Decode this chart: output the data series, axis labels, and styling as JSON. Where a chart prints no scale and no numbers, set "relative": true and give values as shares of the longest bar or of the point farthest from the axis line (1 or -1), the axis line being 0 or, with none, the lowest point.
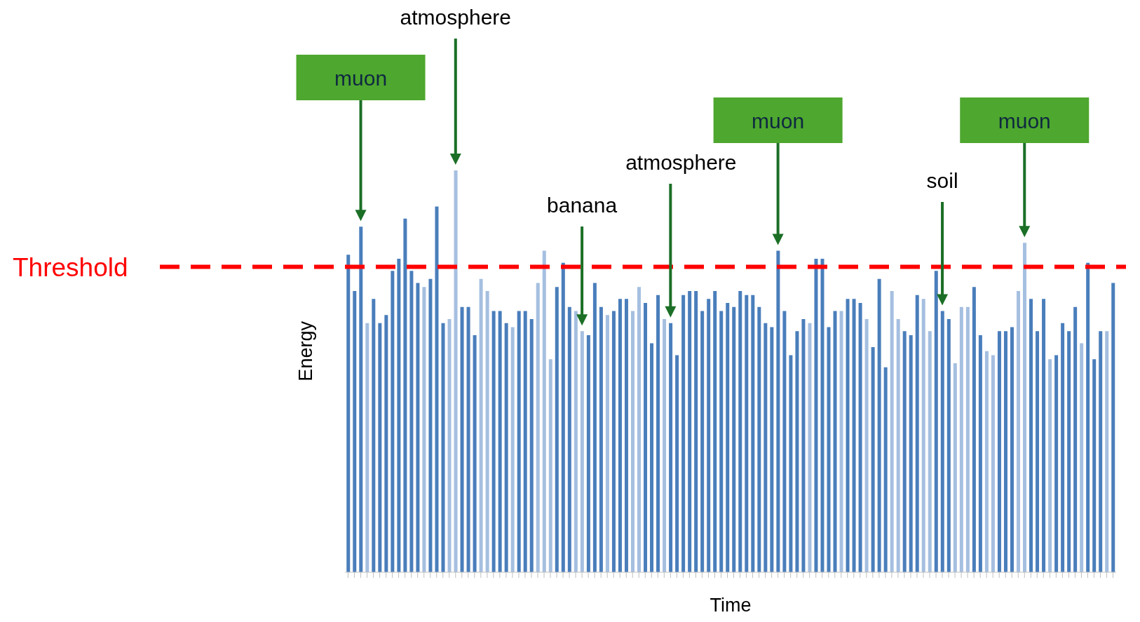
{
  "chart_data": {
    "type": "bar",
    "relative": true,
    "xlabel": "Time",
    "ylabel": "Energy",
    "grid": false,
    "legend": false,
    "categories": [
      null,
      null,
      null,
      null,
      null,
      null,
      null,
      null,
      null,
      null,
      null,
      null,
      null,
      null,
      null,
      null,
      null,
      null,
      null,
      null,
      null,
      null,
      null,
      null,
      null,
      null,
      null,
      null,
      null,
      null,
      null,
      null,
      null,
      null,
      null,
      null,
      null,
      null,
      null,
      null,
      null,
      null,
      null,
      null,
      null,
      null,
      null,
      null,
      null,
      null,
      null,
      null,
      null,
      null,
      null,
      null,
      null,
      null,
      null,
      null,
      null,
      null,
      null,
      null,
      null,
      null,
      null,
      null,
      null,
      null,
      null,
      null,
      null,
      null,
      null,
      null,
      null,
      null,
      null,
      null,
      null,
      null,
      null,
      null,
      null,
      null,
      null,
      null,
      null,
      null,
      null,
      null,
      null,
      null,
      null,
      null,
      null,
      null,
      null,
      null,
      null,
      null,
      null,
      null,
      null,
      null,
      null,
      null,
      null,
      null,
      null,
      null,
      null,
      null,
      null,
      null,
      null,
      null,
      null,
      null,
      null,
      null
    ],
    "values": [
      0.79,
      0.7,
      0.86,
      0.62,
      0.68,
      0.62,
      0.64,
      0.75,
      0.78,
      0.88,
      0.75,
      0.72,
      0.71,
      0.73,
      0.91,
      0.62,
      0.63,
      1,
      0.66,
      0.66,
      0.59,
      0.73,
      0.7,
      0.65,
      0.65,
      0.62,
      0.61,
      0.65,
      0.65,
      0.63,
      0.72,
      0.8,
      0.53,
      0.71,
      0.77,
      0.66,
      0.65,
      0.6,
      0.59,
      0.72,
      0.66,
      0.64,
      0.65,
      0.68,
      0.68,
      0.65,
      0.71,
      0.67,
      0.57,
      0.69,
      0.63,
      0.62,
      0.54,
      0.69,
      0.7,
      0.7,
      0.65,
      0.68,
      0.7,
      0.65,
      0.67,
      0.66,
      0.7,
      0.69,
      0.69,
      0.66,
      0.62,
      0.61,
      0.8,
      0.65,
      0.54,
      0.6,
      0.63,
      0.62,
      0.78,
      0.78,
      0.61,
      0.65,
      0.65,
      0.68,
      0.68,
      0.67,
      0.63,
      0.56,
      0.73,
      0.51,
      0.7,
      0.63,
      0.6,
      0.59,
      0.69,
      0.68,
      0.6,
      0.75,
      0.65,
      0.63,
      0.52,
      0.66,
      0.66,
      0.71,
      0.59,
      0.55,
      0.54,
      0.6,
      0.6,
      0.61,
      0.7,
      0.82,
      0.68,
      0.6,
      0.68,
      0.53,
      0.54,
      0.62,
      0.6,
      0.66,
      0.57,
      0.77,
      0.53,
      0.6,
      0.6,
      0.72
    ],
    "colors": [
      "#4a7ebb",
      "#4a7ebb",
      "#4a7ebb",
      "#a5bfe0",
      "#4a7ebb",
      "#4a7ebb",
      "#4a7ebb",
      "#4a7ebb",
      "#4a7ebb",
      "#4a7ebb",
      "#4a7ebb",
      "#4a7ebb",
      "#a5bfe0",
      "#4a7ebb",
      "#4a7ebb",
      "#4a7ebb",
      "#a5bfe0",
      "#a5bfe0",
      "#4a7ebb",
      "#4a7ebb",
      "#4a7ebb",
      "#a5bfe0",
      "#a5bfe0",
      "#4a7ebb",
      "#4a7ebb",
      "#4a7ebb",
      "#a5bfe0",
      "#4a7ebb",
      "#4a7ebb",
      "#4a7ebb",
      "#a5bfe0",
      "#a5bfe0",
      "#a5bfe0",
      "#4a7ebb",
      "#4a7ebb",
      "#4a7ebb",
      "#a5bfe0",
      "#a5bfe0",
      "#4a7ebb",
      "#4a7ebb",
      "#4a7ebb",
      "#a5bfe0",
      "#4a7ebb",
      "#4a7ebb",
      "#4a7ebb",
      "#a5bfe0",
      "#a5bfe0",
      "#4a7ebb",
      "#4a7ebb",
      "#4a7ebb",
      "#a5bfe0",
      "#4a7ebb",
      "#4a7ebb",
      "#4a7ebb",
      "#4a7ebb",
      "#4a7ebb",
      "#4a7ebb",
      "#4a7ebb",
      "#4a7ebb",
      "#4a7ebb",
      "#4a7ebb",
      "#4a7ebb",
      "#4a7ebb",
      "#4a7ebb",
      "#4a7ebb",
      "#4a7ebb",
      "#4a7ebb",
      "#4a7ebb",
      "#4a7ebb",
      "#4a7ebb",
      "#4a7ebb",
      "#4a7ebb",
      "#4a7ebb",
      "#a5bfe0",
      "#4a7ebb",
      "#4a7ebb",
      "#4a7ebb",
      "#4a7ebb",
      "#a5bfe0",
      "#4a7ebb",
      "#4a7ebb",
      "#4a7ebb",
      "#a5bfe0",
      "#4a7ebb",
      "#4a7ebb",
      "#4a7ebb",
      "#a5bfe0",
      "#a5bfe0",
      "#4a7ebb",
      "#4a7ebb",
      "#4a7ebb",
      "#a5bfe0",
      "#a5bfe0",
      "#4a7ebb",
      "#4a7ebb",
      "#4a7ebb",
      "#a5bfe0",
      "#a5bfe0",
      "#a5bfe0",
      "#4a7ebb",
      "#4a7ebb",
      "#a5bfe0",
      "#a5bfe0",
      "#4a7ebb",
      "#4a7ebb",
      "#4a7ebb",
      "#a5bfe0",
      "#a5bfe0",
      "#4a7ebb",
      "#4a7ebb",
      "#4a7ebb",
      "#a5bfe0",
      "#4a7ebb",
      "#4a7ebb",
      "#4a7ebb",
      "#4a7ebb",
      "#a5bfe0",
      "#4a7ebb",
      "#4a7ebb",
      "#4a7ebb",
      "#a5bfe0",
      "#4a7ebb"
    ],
    "ref_lines": [
      {
        "axis": "y",
        "value": 0.76,
        "label": "Threshold",
        "color": "#ff0000",
        "line_style": "dashed"
      }
    ],
    "annotations": [
      "muon",
      "atmosphere",
      "banana",
      "atmosphere",
      "muon",
      "soil",
      "muon"
    ]
  }
}
